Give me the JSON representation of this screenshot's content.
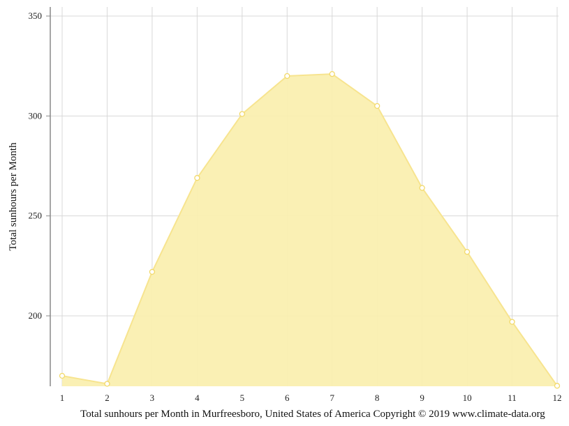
{
  "chart_data": {
    "type": "area",
    "title": "",
    "xlabel": "",
    "ylabel": "Total sunhours per Month",
    "caption": "Total sunhours per Month in Murfreesboro, United States of America Copyright © 2019 www.climate-data.org",
    "x": [
      1,
      2,
      3,
      4,
      5,
      6,
      7,
      8,
      9,
      10,
      11,
      12
    ],
    "x_tick_labels": [
      "1",
      "2",
      "3",
      "4",
      "5",
      "6",
      "7",
      "8",
      "9",
      "10",
      "11",
      "12"
    ],
    "y_ticks": [
      200,
      250,
      300,
      350
    ],
    "y_tick_labels": [
      "200",
      "250",
      "300",
      "350"
    ],
    "ylim": [
      165,
      355
    ],
    "series": [
      {
        "values": [
          170,
          166,
          222,
          269,
          301,
          320,
          321,
          305,
          264,
          232,
          197,
          165
        ]
      }
    ],
    "grid": true,
    "colors": {
      "fill": "#faefb0",
      "line": "#f7e48f",
      "marker_stroke": "#f2d96a",
      "grid": "#d8d8d8",
      "axis": "#888888"
    }
  }
}
